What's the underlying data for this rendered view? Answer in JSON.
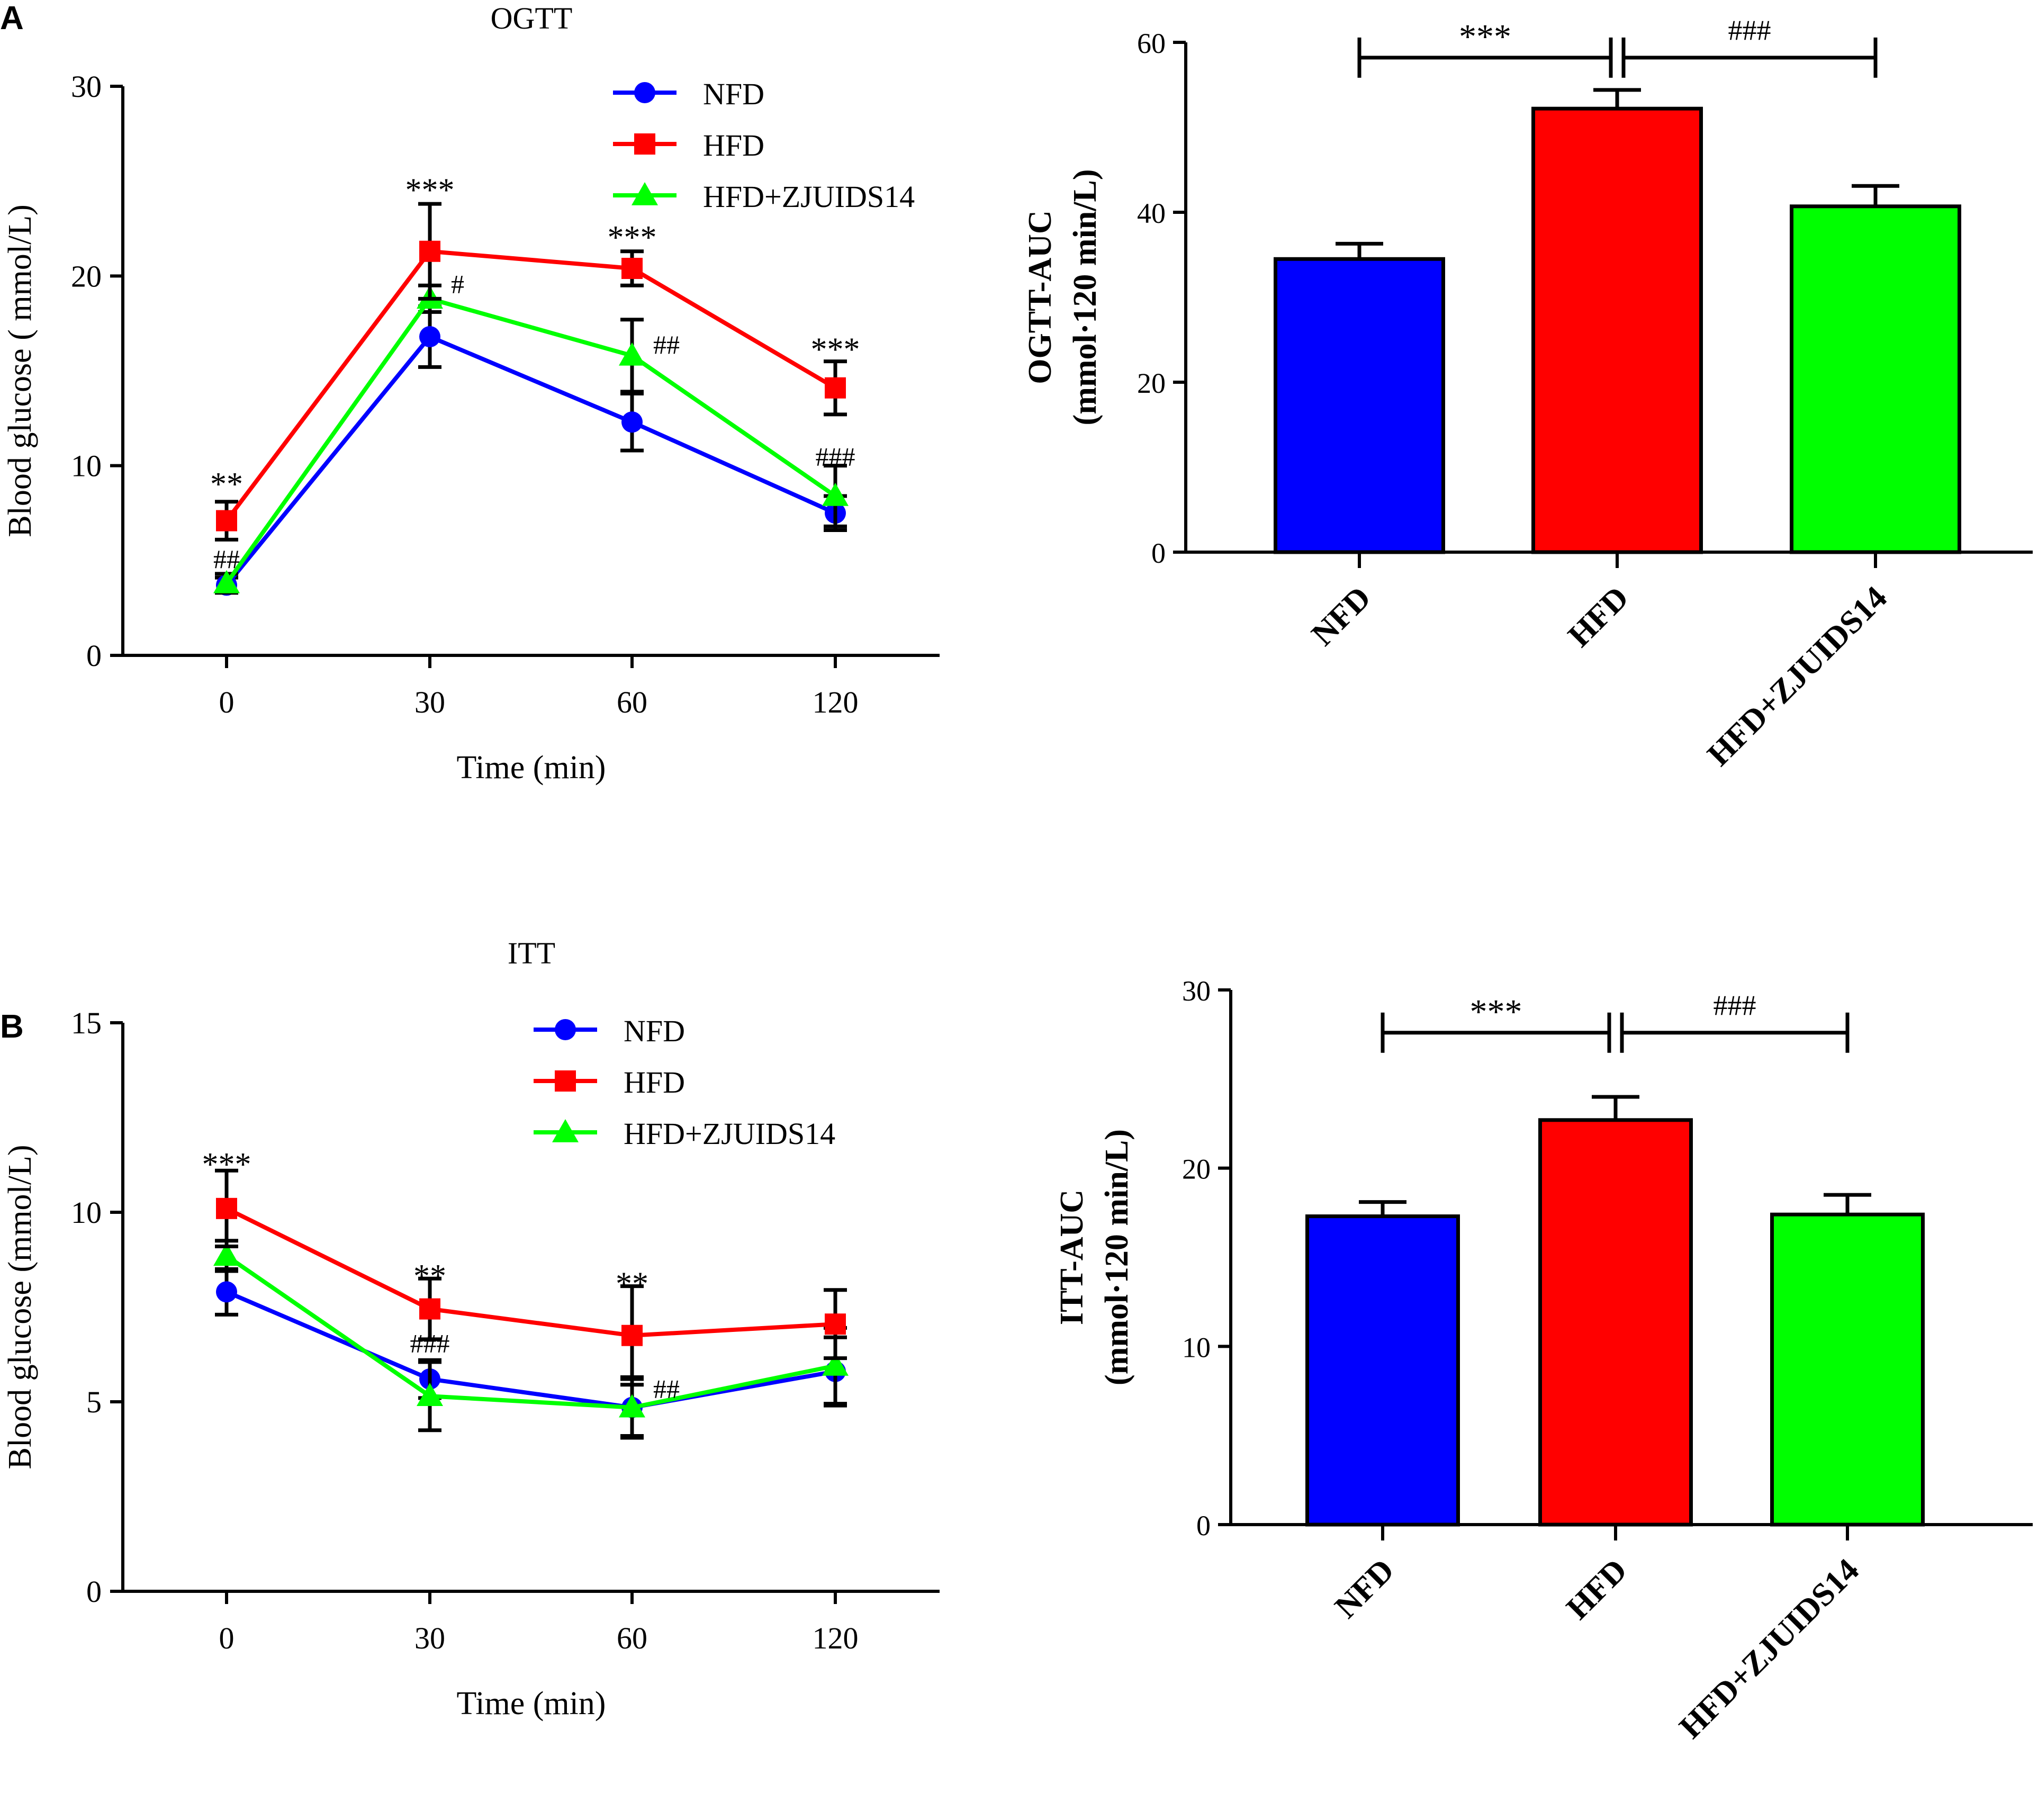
{
  "panel_labels": {
    "a": "A",
    "b": "B"
  },
  "colors": {
    "nfd": "#0000ff",
    "hfd": "#ff0000",
    "treat": "#00ff00",
    "axis": "#000000"
  },
  "chart_data": [
    {
      "id": "ogtt-line",
      "type": "line",
      "title": "OGTT",
      "xlabel": "Time (min)",
      "ylabel": "Blood glucose ( mmol/L)",
      "ylim": [
        0,
        30
      ],
      "yticks": [
        "0",
        "10",
        "20",
        "30"
      ],
      "categories": [
        "0",
        "30",
        "60",
        "120"
      ],
      "legend": [
        "NFD",
        "HFD",
        "HFD+ZJUIDS14"
      ],
      "series": [
        {
          "name": "NFD",
          "marker": "circle",
          "values": [
            3.7,
            16.8,
            12.3,
            7.5
          ],
          "err": [
            0.4,
            1.6,
            1.5,
            0.9
          ]
        },
        {
          "name": "HFD",
          "marker": "square",
          "values": [
            7.1,
            21.3,
            20.4,
            14.1
          ],
          "err": [
            1.0,
            2.5,
            0.9,
            1.4
          ]
        },
        {
          "name": "HFD+ZJUIDS14",
          "marker": "triangle",
          "values": [
            3.8,
            18.8,
            15.8,
            8.4
          ],
          "err": [
            0.5,
            0.7,
            1.9,
            1.6
          ]
        }
      ],
      "annotations": [
        {
          "text": "**",
          "x": "0",
          "y": 9.3
        },
        {
          "text": "##",
          "x": "0",
          "y": 5.0
        },
        {
          "text": "***",
          "x": "30",
          "y": 24.8
        },
        {
          "text": "#",
          "x": "30",
          "y": 19.5,
          "dx": 1
        },
        {
          "text": "***",
          "x": "60",
          "y": 22.3
        },
        {
          "text": "##",
          "x": "60",
          "y": 16.3,
          "dx": 1
        },
        {
          "text": "***",
          "x": "120",
          "y": 16.4
        },
        {
          "text": "###",
          "x": "120",
          "y": 10.4
        }
      ]
    },
    {
      "id": "ogtt-auc",
      "type": "bar",
      "ylabel_line1": "OGTT-AUC",
      "ylabel_line2": "(mmol·120 min/L)",
      "ylim": [
        0,
        60
      ],
      "yticks": [
        "0",
        "20",
        "40",
        "60"
      ],
      "categories": [
        "NFD",
        "HFD",
        "HFD+ZJUIDS14"
      ],
      "values": [
        34.5,
        52.2,
        40.7
      ],
      "err": [
        1.8,
        2.2,
        2.4
      ],
      "brackets": [
        {
          "from": 0,
          "to": 1,
          "y": 58.2,
          "text": "***"
        },
        {
          "from": 1,
          "to": 2,
          "y": 58.2,
          "text": "###"
        }
      ]
    },
    {
      "id": "itt-line",
      "type": "line",
      "title": "ITT",
      "xlabel": "Time (min)",
      "ylabel": "Blood glucose (mmol/L)",
      "ylim": [
        0,
        15
      ],
      "yticks": [
        "0",
        "5",
        "10",
        "15"
      ],
      "categories": [
        "0",
        "30",
        "60",
        "120"
      ],
      "legend": [
        "NFD",
        "HFD",
        "HFD+ZJUIDS14"
      ],
      "series": [
        {
          "name": "NFD",
          "marker": "circle",
          "values": [
            7.9,
            5.6,
            4.85,
            5.8
          ],
          "err": [
            0.6,
            0.5,
            0.75,
            0.9
          ]
        },
        {
          "name": "HFD",
          "marker": "square",
          "values": [
            10.1,
            7.45,
            6.75,
            7.05
          ],
          "err": [
            1.0,
            0.8,
            1.3,
            0.9
          ]
        },
        {
          "name": "HFD+ZJUIDS14",
          "marker": "triangle",
          "values": [
            8.85,
            5.15,
            4.85,
            5.95
          ],
          "err": [
            0.4,
            0.9,
            0.8,
            1.0
          ]
        }
      ],
      "annotations": [
        {
          "text": "***",
          "x": "0",
          "y": 11.4
        },
        {
          "text": "**",
          "x": "30",
          "y": 8.45
        },
        {
          "text": "###",
          "x": "30",
          "y": 6.5
        },
        {
          "text": "**",
          "x": "60",
          "y": 8.25
        },
        {
          "text": "##",
          "x": "60",
          "y": 5.3,
          "dx": 1
        }
      ]
    },
    {
      "id": "itt-auc",
      "type": "bar",
      "ylabel_line1": "ITT-AUC",
      "ylabel_line2": "(mmol·120 min/L)",
      "ylim": [
        0,
        30
      ],
      "yticks": [
        "0",
        "10",
        "20",
        "30"
      ],
      "categories": [
        "NFD",
        "HFD",
        "HFD+ZJUIDS14"
      ],
      "values": [
        17.3,
        22.7,
        17.4
      ],
      "err": [
        0.8,
        1.3,
        1.1
      ],
      "brackets": [
        {
          "from": 0,
          "to": 1,
          "y": 27.6,
          "text": "***"
        },
        {
          "from": 1,
          "to": 2,
          "y": 27.6,
          "text": "###"
        }
      ]
    }
  ]
}
